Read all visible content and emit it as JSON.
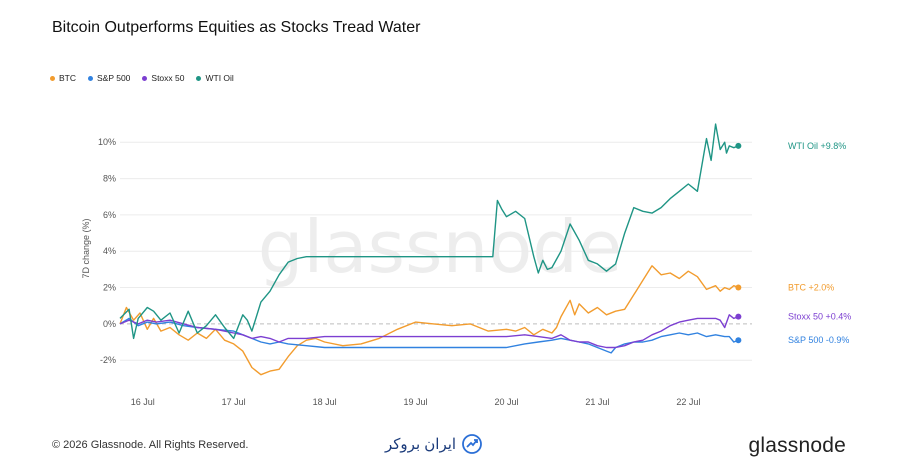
{
  "title": "Bitcoin Outperforms Equities as Stocks Tread Water",
  "footer": {
    "copyright": "© 2026 Glassnode. All Rights Reserved.",
    "logo": "glassnode",
    "partner": "ایران بروکر"
  },
  "watermark": "glassnode",
  "chart_data": {
    "type": "line",
    "ylabel": "7D change (%)",
    "ylim": [
      -3.2,
      11.5
    ],
    "yticks": [
      -2,
      0,
      2,
      4,
      6,
      8,
      10
    ],
    "ytick_labels": [
      "-2%",
      "0%",
      "2%",
      "4%",
      "6%",
      "8%",
      "10%"
    ],
    "xlim": [
      15.75,
      22.7
    ],
    "xticks": [
      16,
      17,
      18,
      19,
      20,
      21,
      22
    ],
    "xtick_labels": [
      "16 Jul",
      "17 Jul",
      "18 Jul",
      "19 Jul",
      "20 Jul",
      "21 Jul",
      "22 Jul"
    ],
    "grid": "horizontal",
    "zero_line": "dashed",
    "legend_position": "top-left",
    "series": [
      {
        "name": "BTC",
        "color": "#f29c2e",
        "end_label": "BTC +2.0%",
        "x": [
          15.75,
          15.82,
          15.9,
          15.97,
          16.05,
          16.12,
          16.2,
          16.3,
          16.4,
          16.5,
          16.6,
          16.7,
          16.8,
          16.9,
          17.0,
          17.1,
          17.2,
          17.3,
          17.4,
          17.5,
          17.6,
          17.7,
          17.8,
          17.9,
          18.0,
          18.2,
          18.4,
          18.6,
          18.8,
          19.0,
          19.2,
          19.4,
          19.6,
          19.8,
          20.0,
          20.1,
          20.2,
          20.3,
          20.4,
          20.5,
          20.55,
          20.6,
          20.7,
          20.75,
          20.8,
          20.9,
          21.0,
          21.1,
          21.2,
          21.3,
          21.4,
          21.5,
          21.6,
          21.7,
          21.8,
          21.9,
          22.0,
          22.1,
          22.2,
          22.3,
          22.35,
          22.4,
          22.45,
          22.5,
          22.55
        ],
        "y": [
          0.0,
          0.9,
          0.2,
          0.6,
          -0.3,
          0.3,
          -0.4,
          -0.2,
          -0.6,
          -0.9,
          -0.5,
          -0.8,
          -0.3,
          -0.9,
          -1.1,
          -1.5,
          -2.4,
          -2.8,
          -2.6,
          -2.5,
          -1.8,
          -1.2,
          -0.9,
          -0.8,
          -1.0,
          -1.2,
          -1.1,
          -0.8,
          -0.3,
          0.1,
          0.0,
          -0.1,
          0.0,
          -0.4,
          -0.3,
          -0.4,
          -0.2,
          -0.6,
          -0.3,
          -0.5,
          -0.2,
          0.4,
          1.3,
          0.5,
          1.1,
          0.6,
          0.9,
          0.5,
          0.7,
          0.8,
          1.6,
          2.4,
          3.2,
          2.7,
          2.8,
          2.5,
          2.9,
          2.6,
          1.9,
          2.1,
          1.8,
          2.0,
          1.9,
          2.1,
          2.0
        ]
      },
      {
        "name": "S&P 500",
        "color": "#3182e0",
        "end_label": "S&P 500 -0.9%",
        "x": [
          15.75,
          15.85,
          15.95,
          16.05,
          16.15,
          16.3,
          16.45,
          16.6,
          16.8,
          17.0,
          17.1,
          17.2,
          17.3,
          17.4,
          17.5,
          17.6,
          17.8,
          18.0,
          18.4,
          18.8,
          19.2,
          19.6,
          20.0,
          20.2,
          20.35,
          20.5,
          20.6,
          20.7,
          20.8,
          20.9,
          21.0,
          21.1,
          21.15,
          21.2,
          21.3,
          21.4,
          21.5,
          21.6,
          21.7,
          21.8,
          21.9,
          22.0,
          22.1,
          22.2,
          22.3,
          22.4,
          22.45,
          22.5,
          22.55
        ],
        "y": [
          0.0,
          0.3,
          -0.1,
          0.1,
          0.0,
          0.1,
          -0.1,
          -0.2,
          -0.3,
          -0.4,
          -0.6,
          -0.8,
          -1.0,
          -1.1,
          -1.0,
          -1.1,
          -1.2,
          -1.3,
          -1.3,
          -1.3,
          -1.3,
          -1.3,
          -1.3,
          -1.1,
          -1.0,
          -0.9,
          -0.8,
          -0.9,
          -1.0,
          -1.1,
          -1.3,
          -1.5,
          -1.6,
          -1.3,
          -1.1,
          -1.0,
          -1.0,
          -0.9,
          -0.7,
          -0.6,
          -0.5,
          -0.6,
          -0.5,
          -0.7,
          -0.6,
          -0.7,
          -0.7,
          -1.0,
          -0.9
        ]
      },
      {
        "name": "Stoxx 50",
        "color": "#7c3fd1",
        "end_label": "Stoxx 50 +0.4%",
        "x": [
          15.75,
          15.85,
          15.95,
          16.05,
          16.15,
          16.3,
          16.45,
          16.6,
          16.8,
          17.0,
          17.1,
          17.2,
          17.3,
          17.4,
          17.5,
          17.6,
          17.8,
          18.0,
          18.4,
          18.8,
          19.2,
          19.6,
          20.0,
          20.2,
          20.35,
          20.5,
          20.6,
          20.7,
          20.8,
          20.9,
          21.0,
          21.1,
          21.2,
          21.3,
          21.4,
          21.5,
          21.6,
          21.7,
          21.8,
          21.9,
          22.0,
          22.1,
          22.2,
          22.3,
          22.35,
          22.4,
          22.45,
          22.5,
          22.55
        ],
        "y": [
          0.0,
          0.2,
          0.0,
          0.2,
          0.1,
          0.2,
          0.0,
          -0.2,
          -0.3,
          -0.5,
          -0.6,
          -0.8,
          -0.7,
          -0.8,
          -1.0,
          -0.8,
          -0.8,
          -0.7,
          -0.7,
          -0.7,
          -0.7,
          -0.7,
          -0.7,
          -0.6,
          -0.7,
          -0.8,
          -0.6,
          -0.9,
          -1.0,
          -1.0,
          -1.2,
          -1.3,
          -1.3,
          -1.2,
          -1.0,
          -0.9,
          -0.6,
          -0.4,
          -0.1,
          0.1,
          0.2,
          0.3,
          0.3,
          0.3,
          0.2,
          -0.2,
          0.5,
          0.3,
          0.4
        ]
      },
      {
        "name": "WTI Oil",
        "color": "#1f9585",
        "end_label": "WTI Oil +9.8%",
        "x": [
          15.75,
          15.85,
          15.9,
          15.95,
          16.05,
          16.12,
          16.2,
          16.3,
          16.4,
          16.5,
          16.6,
          16.7,
          16.8,
          16.9,
          17.0,
          17.1,
          17.15,
          17.2,
          17.3,
          17.4,
          17.5,
          17.6,
          17.7,
          17.8,
          17.9,
          18.0,
          18.3,
          18.6,
          18.9,
          19.2,
          19.5,
          19.85,
          19.9,
          19.95,
          20.0,
          20.1,
          20.2,
          20.3,
          20.35,
          20.4,
          20.45,
          20.5,
          20.6,
          20.7,
          20.8,
          20.9,
          21.0,
          21.1,
          21.2,
          21.3,
          21.4,
          21.5,
          21.6,
          21.7,
          21.8,
          21.9,
          22.0,
          22.1,
          22.2,
          22.25,
          22.3,
          22.35,
          22.4,
          22.42,
          22.45,
          22.5,
          22.55
        ],
        "y": [
          0.3,
          0.8,
          -0.8,
          0.3,
          0.9,
          0.7,
          0.2,
          0.6,
          -0.5,
          0.7,
          -0.5,
          -0.1,
          0.5,
          -0.2,
          -0.8,
          0.5,
          0.2,
          -0.4,
          1.2,
          1.8,
          2.7,
          3.4,
          3.6,
          3.7,
          3.7,
          3.7,
          3.7,
          3.7,
          3.7,
          3.7,
          3.7,
          3.7,
          6.8,
          6.3,
          5.9,
          6.2,
          5.8,
          3.7,
          2.8,
          3.5,
          3.0,
          3.1,
          4.0,
          5.5,
          4.6,
          3.5,
          3.3,
          2.9,
          3.3,
          5.0,
          6.4,
          6.2,
          6.1,
          6.4,
          6.9,
          7.3,
          7.7,
          7.3,
          10.2,
          9.0,
          11.0,
          9.6,
          10.0,
          9.4,
          9.8,
          9.7,
          9.8
        ]
      }
    ]
  }
}
